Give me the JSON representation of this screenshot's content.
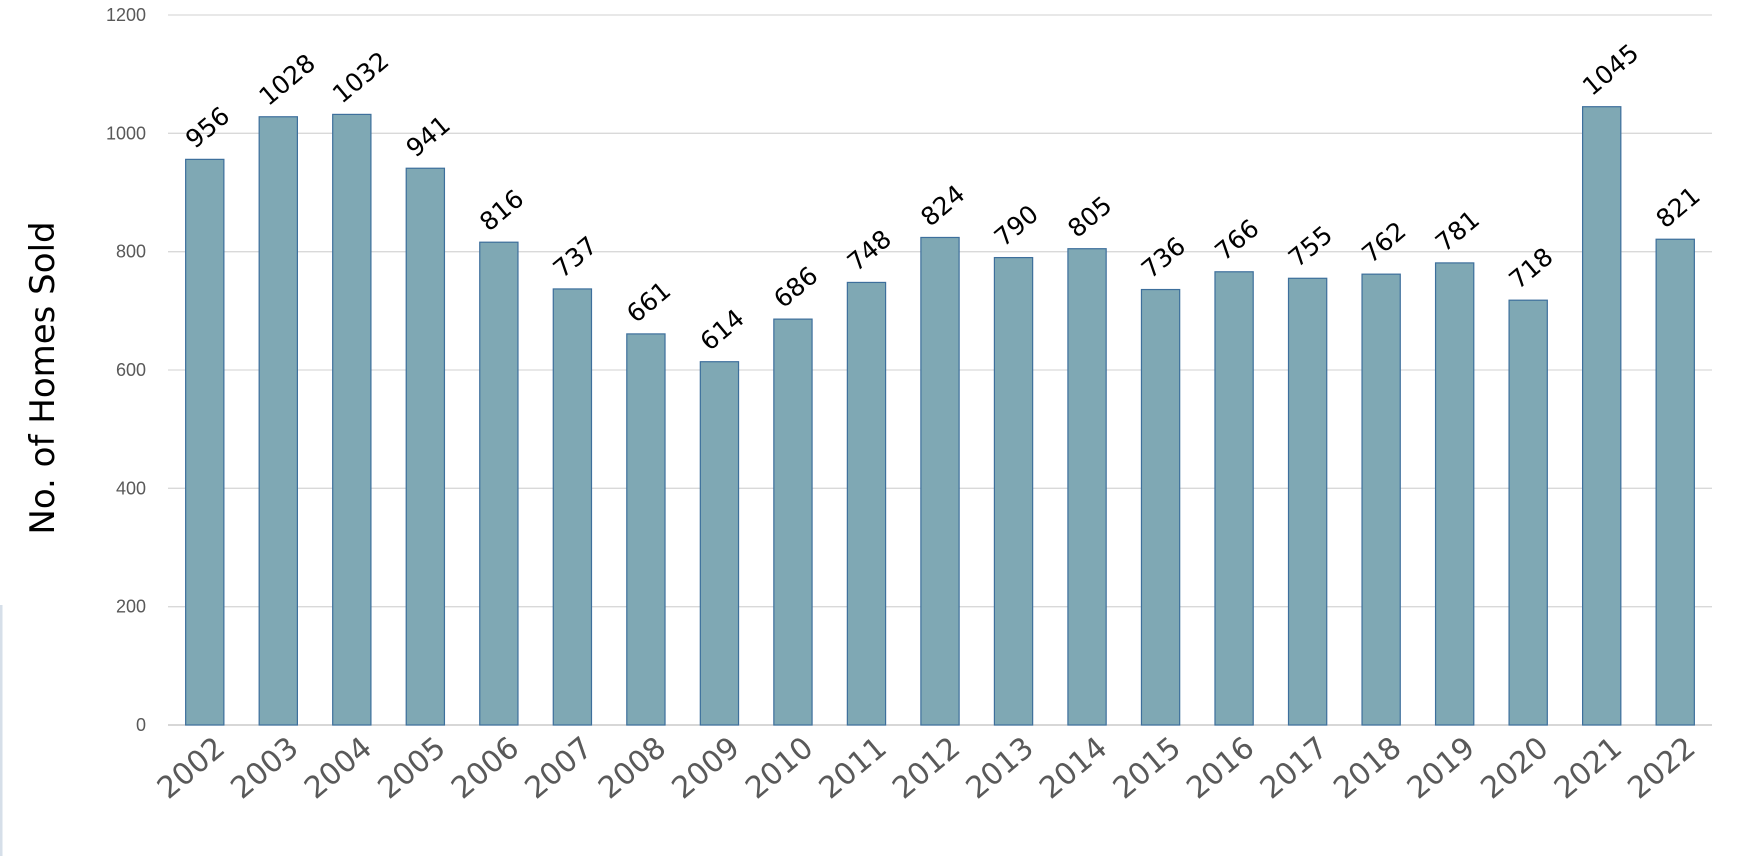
{
  "chart_data": {
    "type": "bar",
    "title": "",
    "xlabel": "",
    "ylabel": "No. of Homes Sold",
    "categories": [
      "2002",
      "2003",
      "2004",
      "2005",
      "2006",
      "2007",
      "2008",
      "2009",
      "2010",
      "2011",
      "2012",
      "2013",
      "2014",
      "2015",
      "2016",
      "2017",
      "2018",
      "2019",
      "2020",
      "2021",
      "2022"
    ],
    "values": [
      956,
      1028,
      1032,
      941,
      816,
      737,
      661,
      614,
      686,
      748,
      824,
      790,
      805,
      736,
      766,
      755,
      762,
      781,
      718,
      1045,
      821
    ],
    "ylim": [
      0,
      1200
    ],
    "yticks": [
      0,
      200,
      400,
      600,
      800,
      1000,
      1200
    ],
    "grid": true,
    "data_labels": true,
    "legend": "none",
    "colors": {
      "bar_fill": "#7fa8b4",
      "bar_edge": "#3d6f9c",
      "grid": "#d9d9d9"
    }
  }
}
